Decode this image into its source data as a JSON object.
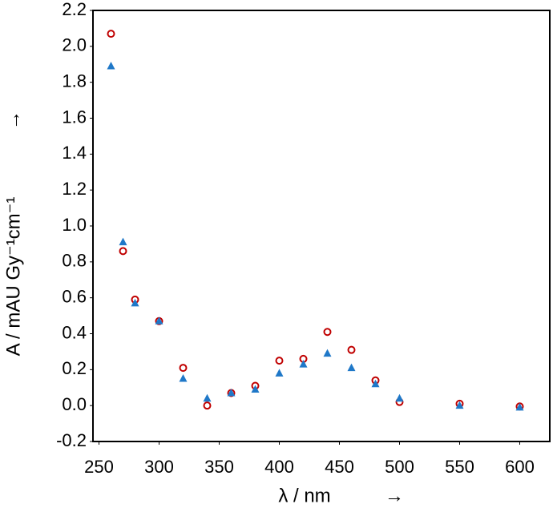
{
  "chart_data": {
    "type": "scatter",
    "xlabel": "λ / nm",
    "xlabel_arrow": "→",
    "ylabel": "A / mAU Gy⁻¹cm⁻¹",
    "ylabel_arrow": "→",
    "x": [
      260,
      270,
      280,
      300,
      320,
      340,
      360,
      380,
      400,
      420,
      440,
      460,
      480,
      500,
      550,
      600
    ],
    "series": [
      {
        "color": "#c00000",
        "marker": "circle",
        "values": [
          2.07,
          0.86,
          0.59,
          0.47,
          0.21,
          0.0,
          0.07,
          0.11,
          0.25,
          0.26,
          0.41,
          0.31,
          0.14,
          0.02,
          0.01,
          -0.005
        ]
      },
      {
        "color": "#1f78c8",
        "marker": "triangle",
        "values": [
          1.89,
          0.91,
          0.57,
          0.47,
          0.15,
          0.04,
          0.07,
          0.09,
          0.18,
          0.23,
          0.29,
          0.21,
          0.12,
          0.04,
          0.0,
          -0.01
        ]
      }
    ],
    "xlim": [
      245,
      625
    ],
    "xticks": [
      250,
      300,
      350,
      400,
      450,
      500,
      550,
      600
    ],
    "ylim": [
      -0.2,
      2.2
    ],
    "yticks": [
      -0.2,
      {
        "value": 0,
        "label": "0.0"
      },
      0.2,
      0.4,
      0.6,
      0.8,
      {
        "value": 1,
        "label": "1.0"
      },
      1.2,
      1.4,
      1.6,
      1.8,
      {
        "value": 2,
        "label": "2.0"
      },
      2.2
    ]
  }
}
